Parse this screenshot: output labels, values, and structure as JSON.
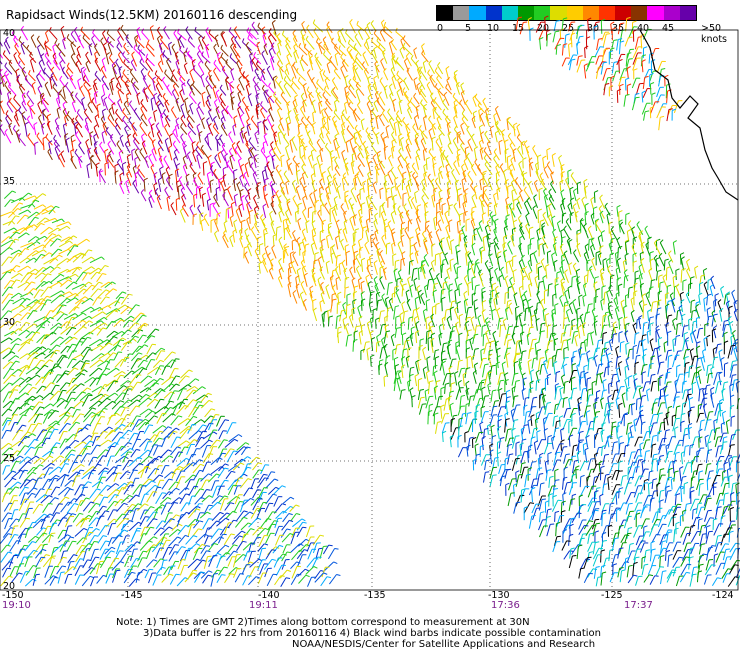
{
  "title": "Rapidsact Winds(12.5KM) 20160116 descending",
  "legend": {
    "colors": [
      "#000000",
      "#9a9a9a",
      "#00aaff",
      "#0033cc",
      "#00cccc",
      "#009900",
      "#22cc22",
      "#dddd00",
      "#ffcc00",
      "#ff8800",
      "#ff3300",
      "#cc0000",
      "#883300",
      "#ff00ff",
      "#aa00cc",
      "#6600aa"
    ],
    "labels": [
      "0",
      "5",
      "10",
      "15",
      "20",
      "25",
      "30",
      "35",
      "40",
      "45",
      ">50 knots"
    ]
  },
  "axes": {
    "lat_labels": [
      "40",
      "35",
      "30",
      "25",
      "20"
    ],
    "lon_labels": [
      "-150",
      "-145",
      "-140",
      "-135",
      "-130",
      "-125",
      "-124"
    ]
  },
  "times": [
    "19:10",
    "19:11",
    "17:36",
    "17:37"
  ],
  "notes": [
    "Note: 1) Times are GMT 2)Times along bottom correspond to measurement at 30N",
    "3)Data buffer is 22 hrs from 20160116 4) Black wind barbs indicate possible contamination",
    "NOAA/NESDIS/Center for Satellite Applications and Research"
  ]
}
